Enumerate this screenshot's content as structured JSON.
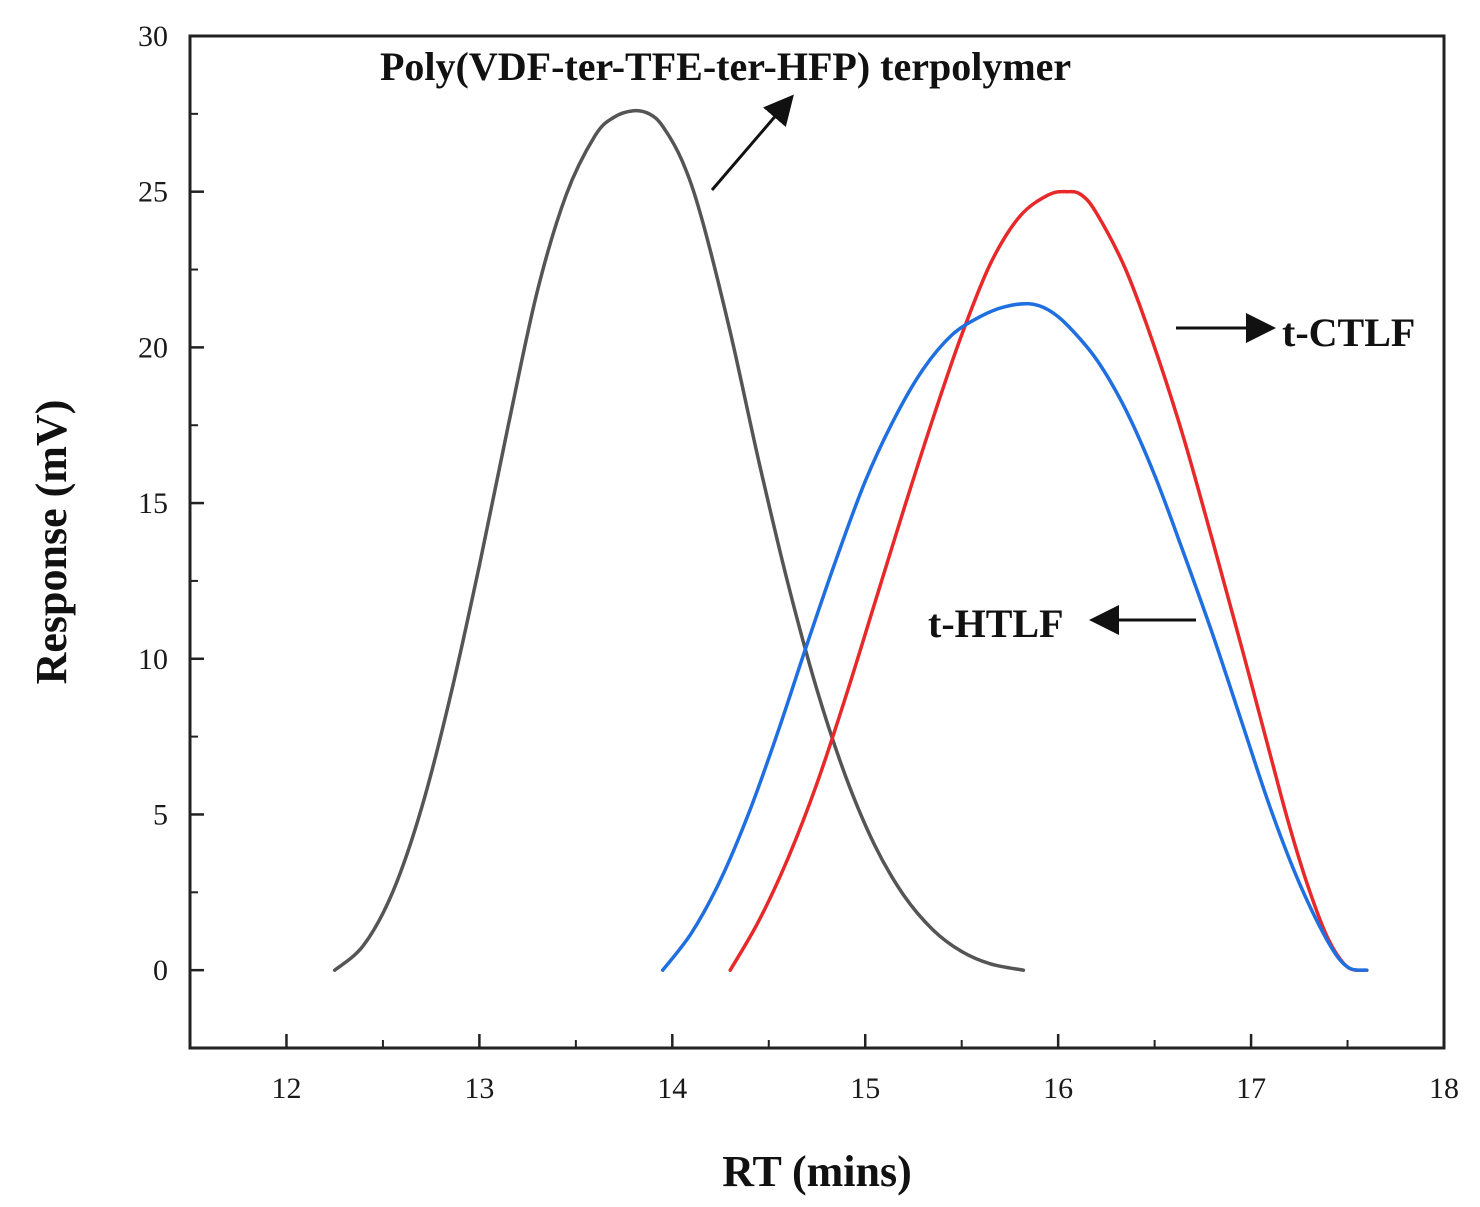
{
  "chart_data": {
    "type": "line",
    "title": "",
    "xlabel": "RT (mins)",
    "ylabel": "Response (mV)",
    "xlim": [
      11.5,
      18
    ],
    "ylim": [
      -2.5,
      30
    ],
    "xticks": [
      12,
      13,
      14,
      15,
      16,
      17,
      18
    ],
    "yticks": [
      0,
      5,
      10,
      15,
      20,
      25,
      30
    ],
    "grid": false,
    "series": [
      {
        "name": "Poly(VDF-ter-TFE-ter-HFP) terpolymer",
        "color": "#555555",
        "x": [
          12.25,
          12.4,
          12.55,
          12.7,
          12.85,
          13.0,
          13.15,
          13.3,
          13.45,
          13.6,
          13.7,
          13.8,
          13.88,
          13.95,
          14.05,
          14.15,
          14.3,
          14.45,
          14.6,
          14.75,
          14.9,
          15.05,
          15.2,
          15.35,
          15.5,
          15.65,
          15.82
        ],
        "y": [
          0.0,
          0.8,
          2.5,
          5.2,
          8.8,
          13.0,
          17.5,
          21.8,
          24.9,
          26.8,
          27.4,
          27.6,
          27.5,
          27.1,
          26.0,
          24.2,
          20.5,
          16.3,
          12.4,
          9.0,
          6.2,
          4.0,
          2.4,
          1.3,
          0.6,
          0.2,
          0.0
        ]
      },
      {
        "name": "t-CTLF",
        "color": "#e8292a",
        "x": [
          14.3,
          14.45,
          14.6,
          14.75,
          14.9,
          15.05,
          15.2,
          15.35,
          15.5,
          15.65,
          15.8,
          15.95,
          16.05,
          16.12,
          16.2,
          16.35,
          16.5,
          16.65,
          16.8,
          16.95,
          17.1,
          17.2,
          17.3,
          17.4,
          17.5,
          17.6
        ],
        "y": [
          0.0,
          1.6,
          3.6,
          6.0,
          8.8,
          11.8,
          14.8,
          17.7,
          20.4,
          22.7,
          24.2,
          24.9,
          25.0,
          24.9,
          24.3,
          22.5,
          20.0,
          17.1,
          13.8,
          10.4,
          6.9,
          4.6,
          2.6,
          1.0,
          0.1,
          0.0
        ]
      },
      {
        "name": "t-HTLF",
        "color": "#1f6fe0",
        "x": [
          13.95,
          14.1,
          14.25,
          14.4,
          14.55,
          14.7,
          14.85,
          15.0,
          15.15,
          15.3,
          15.45,
          15.6,
          15.72,
          15.85,
          15.95,
          16.05,
          16.2,
          16.35,
          16.5,
          16.65,
          16.8,
          16.95,
          17.1,
          17.25,
          17.4,
          17.5,
          17.6
        ],
        "y": [
          0.0,
          1.2,
          2.9,
          5.1,
          7.7,
          10.5,
          13.2,
          15.7,
          17.7,
          19.3,
          20.4,
          21.0,
          21.3,
          21.4,
          21.2,
          20.7,
          19.6,
          18.0,
          15.9,
          13.4,
          10.8,
          8.0,
          5.2,
          2.8,
          0.9,
          0.1,
          0.0
        ]
      }
    ],
    "annotations": {
      "terpolymer": "Poly(VDF-ter-TFE-ter-HFP) terpolymer",
      "ctlf": "t-CTLF",
      "htlf": "t-HTLF"
    }
  }
}
